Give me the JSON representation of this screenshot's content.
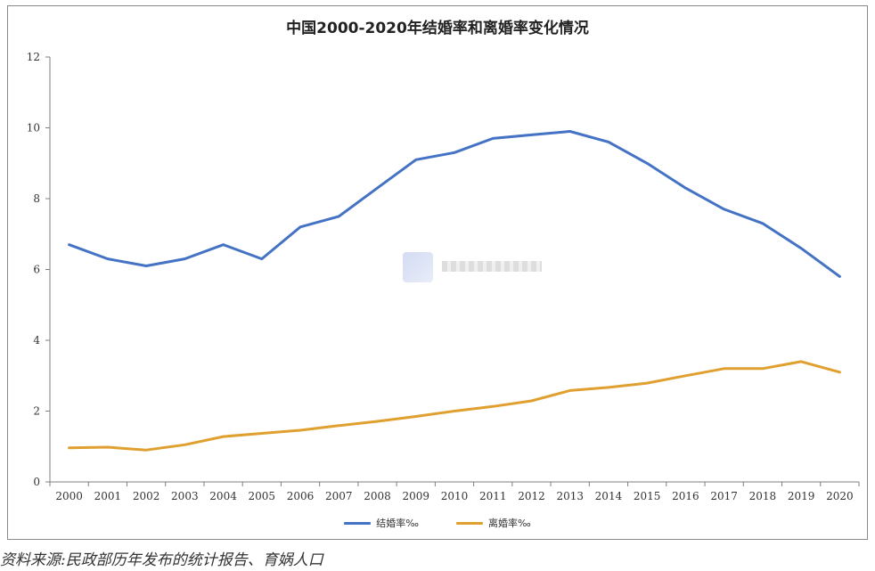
{
  "chart_data": {
    "type": "line",
    "title": "中国2000-2020年结婚率和离婚率变化情况",
    "categories": [
      "2000",
      "2001",
      "2002",
      "2003",
      "2004",
      "2005",
      "2006",
      "2007",
      "2008",
      "2009",
      "2010",
      "2011",
      "2012",
      "2013",
      "2014",
      "2015",
      "2016",
      "2017",
      "2018",
      "2019",
      "2020"
    ],
    "series": [
      {
        "name": "结婚率‰",
        "color": "#4472c4",
        "values": [
          6.7,
          6.3,
          6.1,
          6.3,
          6.7,
          6.3,
          7.2,
          7.5,
          8.3,
          9.1,
          9.3,
          9.7,
          9.8,
          9.9,
          9.6,
          9.0,
          8.3,
          7.7,
          7.3,
          6.6,
          5.8
        ]
      },
      {
        "name": "离婚率‰",
        "color": "#e0a030",
        "values": [
          0.96,
          0.98,
          0.9,
          1.05,
          1.28,
          1.37,
          1.46,
          1.59,
          1.71,
          1.85,
          2.0,
          2.13,
          2.29,
          2.58,
          2.67,
          2.79,
          3.0,
          3.2,
          3.2,
          3.4,
          3.1
        ]
      }
    ],
    "yticks": [
      0,
      2,
      4,
      6,
      8,
      10,
      12
    ],
    "ylim": [
      0,
      12
    ],
    "grid": false,
    "legend": "bottom"
  },
  "source_note": "资料来源:民政部历年发布的统计报告、育娲人口"
}
